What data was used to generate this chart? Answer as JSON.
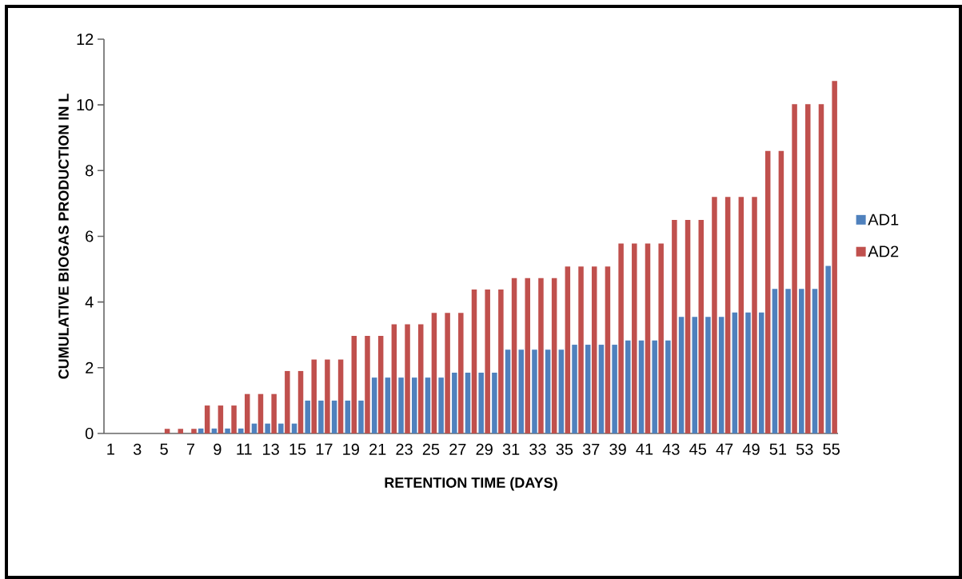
{
  "chart_data": {
    "type": "bar",
    "xlabel": "RETENTION TIME (DAYS)",
    "ylabel": "CUMULATIVE BIOGAS PRODUCTION IN L",
    "categories": [
      "1",
      null,
      "3",
      null,
      "5",
      null,
      "7",
      null,
      "9",
      null,
      "11",
      null,
      "13",
      null,
      "15",
      null,
      "17",
      null,
      "19",
      null,
      "21",
      null,
      "23",
      null,
      "25",
      null,
      "27",
      null,
      "29",
      null,
      "31",
      null,
      "33",
      null,
      "35",
      null,
      "37",
      null,
      "39",
      null,
      "41",
      null,
      "43",
      null,
      "45",
      null,
      "47",
      null,
      "49",
      null,
      "51",
      null,
      "53",
      null,
      "55"
    ],
    "series": [
      {
        "name": "AD1",
        "color": "#4f81bd",
        "values": [
          0,
          0,
          0,
          0,
          0,
          0,
          0,
          0.15,
          0.15,
          0.15,
          0.15,
          0.3,
          0.3,
          0.3,
          0.3,
          1.0,
          1.0,
          1.0,
          1.0,
          1.0,
          1.7,
          1.7,
          1.7,
          1.7,
          1.7,
          1.7,
          1.85,
          1.85,
          1.85,
          1.85,
          2.55,
          2.55,
          2.55,
          2.55,
          2.55,
          2.7,
          2.7,
          2.7,
          2.7,
          2.83,
          2.83,
          2.83,
          2.83,
          3.55,
          3.55,
          3.55,
          3.55,
          3.68,
          3.68,
          3.68,
          4.4,
          4.4,
          4.4,
          4.4,
          5.1
        ]
      },
      {
        "name": "AD2",
        "color": "#c0504d",
        "values": [
          0,
          0,
          0,
          0,
          0.14,
          0.14,
          0.14,
          0.85,
          0.85,
          0.85,
          1.2,
          1.2,
          1.2,
          1.9,
          1.9,
          2.25,
          2.25,
          2.25,
          2.97,
          2.97,
          2.97,
          3.32,
          3.32,
          3.32,
          3.67,
          3.67,
          3.67,
          4.38,
          4.38,
          4.38,
          4.73,
          4.73,
          4.73,
          4.73,
          5.08,
          5.08,
          5.08,
          5.08,
          5.78,
          5.78,
          5.78,
          5.78,
          6.5,
          6.5,
          6.5,
          7.2,
          7.2,
          7.2,
          7.2,
          8.6,
          8.6,
          10.02,
          10.02,
          10.02,
          10.73
        ]
      }
    ],
    "ylim": [
      0,
      12
    ],
    "yticks": [
      0,
      2,
      4,
      6,
      8,
      10,
      12
    ],
    "grid": false,
    "legend": "right"
  }
}
